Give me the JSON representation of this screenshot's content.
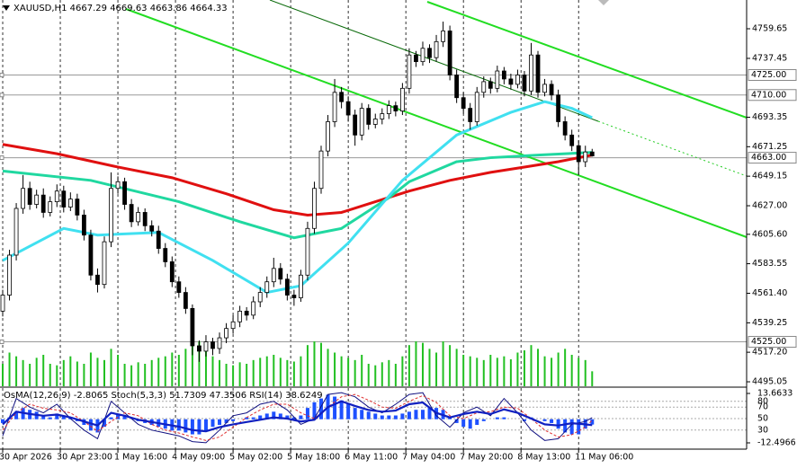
{
  "chart_data": [
    {
      "type": "candlestick",
      "title": "XAUUSD,H1",
      "xlim": [
        -0.4,
        109.8
      ],
      "xticks": [
        {
          "value": 0,
          "label": "30 Apr 2026"
        },
        {
          "value": 8.5,
          "label": "30 Apr 23:00"
        },
        {
          "value": 17,
          "label": "1 May 16:00"
        },
        {
          "value": 25.5,
          "label": "4 May 09:00"
        },
        {
          "value": 34,
          "label": "5 May 02:00"
        },
        {
          "value": 42.5,
          "label": "5 May 18:00"
        },
        {
          "value": 51,
          "label": "6 May 11:00"
        },
        {
          "value": 59.5,
          "label": "7 May 04:00"
        },
        {
          "value": 68,
          "label": "7 May 20:00"
        },
        {
          "value": 76.5,
          "label": "8 May 13:00"
        },
        {
          "value": 85,
          "label": "11 May 06:00"
        }
      ],
      "ylim": [
        4491.7,
        4781.2
      ],
      "yticks": [
        4759.65,
        4737.45,
        4693.35,
        4671.25,
        4649.15,
        {
          "value": 4627,
          "label": "4627.00"
        },
        {
          "value": 4605.6,
          "label": "4605.60"
        },
        4583.55,
        {
          "value": 4561.4,
          "label": "4561.40"
        },
        4539.25,
        {
          "value": 4517.2,
          "label": "4517.20"
        },
        4495.05
      ],
      "levels": [
        {
          "value": 4725,
          "label": "4725.00"
        },
        {
          "value": 4710,
          "label": "4710.00"
        },
        {
          "value": 4663,
          "label": "4663.00"
        },
        {
          "value": 4525,
          "label": "4525.00"
        }
      ],
      "open": [
        4548,
        4560,
        4590,
        4625,
        4640,
        4628,
        4635,
        4622,
        4630,
        4638,
        4626,
        4632,
        4620,
        4605,
        4575,
        4568,
        4600,
        4640,
        4645,
        4628,
        4615,
        4622,
        4612,
        4608,
        4595,
        4585,
        4570,
        4562,
        4550,
        4522,
        4518,
        4525,
        4520,
        4528,
        4535,
        4540,
        4548,
        4545,
        4555,
        4562,
        4570,
        4580,
        4572,
        4560,
        4558,
        4575,
        4610,
        4640,
        4668,
        4690,
        4712,
        4705,
        4695,
        4680,
        4700,
        4688,
        4692,
        4696,
        4702,
        4698,
        4715,
        4740,
        4735,
        4745,
        4738,
        4750,
        4758,
        4725,
        4708,
        4700,
        4690,
        4712,
        4720,
        4715,
        4728,
        4722,
        4718,
        4725,
        4713,
        4740,
        4712,
        4718,
        4710,
        4690,
        4680,
        4672,
        4660,
        4667.29
      ],
      "high": [
        4564,
        4594,
        4629,
        4650,
        4645,
        4639,
        4640,
        4634,
        4643,
        4642,
        4637,
        4636,
        4624,
        4609,
        4580,
        4604,
        4652,
        4649,
        4648,
        4632,
        4626,
        4625,
        4616,
        4612,
        4599,
        4589,
        4574,
        4566,
        4553,
        4526,
        4530,
        4528,
        4532,
        4539,
        4545,
        4552,
        4551,
        4559,
        4566,
        4574,
        4588,
        4584,
        4576,
        4564,
        4579,
        4615,
        4645,
        4672,
        4695,
        4722,
        4716,
        4709,
        4699,
        4704,
        4703,
        4696,
        4700,
        4706,
        4705,
        4719,
        4745,
        4743,
        4750,
        4748,
        4755,
        4765,
        4762,
        4729,
        4712,
        4704,
        4716,
        4724,
        4723,
        4732,
        4731,
        4726,
        4729,
        4728,
        4749,
        4743,
        4722,
        4721,
        4714,
        4694,
        4684,
        4676,
        4672,
        4669.63
      ],
      "low": [
        4544,
        4556,
        4586,
        4621,
        4624,
        4625,
        4618,
        4619,
        4626,
        4622,
        4623,
        4616,
        4601,
        4571,
        4562,
        4565,
        4596,
        4636,
        4624,
        4611,
        4612,
        4608,
        4604,
        4591,
        4581,
        4566,
        4558,
        4546,
        4515,
        4510,
        4514,
        4515,
        4516,
        4524,
        4531,
        4536,
        4541,
        4542,
        4551,
        4558,
        4566,
        4568,
        4556,
        4552,
        4555,
        4571,
        4606,
        4636,
        4664,
        4686,
        4700,
        4690,
        4672,
        4676,
        4684,
        4685,
        4688,
        4692,
        4694,
        4695,
        4711,
        4731,
        4732,
        4734,
        4735,
        4746,
        4721,
        4704,
        4696,
        4684,
        4687,
        4708,
        4711,
        4712,
        4718,
        4714,
        4715,
        4709,
        4710,
        4708,
        4709,
        4706,
        4686,
        4676,
        4668,
        4650,
        4656,
        4663.86
      ],
      "close": [
        4560,
        4590,
        4625,
        4640,
        4628,
        4635,
        4622,
        4630,
        4638,
        4626,
        4632,
        4620,
        4605,
        4575,
        4568,
        4600,
        4640,
        4645,
        4628,
        4615,
        4622,
        4612,
        4608,
        4595,
        4585,
        4570,
        4562,
        4550,
        4522,
        4518,
        4525,
        4520,
        4528,
        4535,
        4540,
        4548,
        4545,
        4555,
        4562,
        4570,
        4580,
        4572,
        4560,
        4558,
        4575,
        4610,
        4640,
        4668,
        4690,
        4712,
        4705,
        4695,
        4680,
        4700,
        4688,
        4692,
        4696,
        4702,
        4698,
        4715,
        4740,
        4735,
        4745,
        4738,
        4750,
        4758,
        4725,
        4708,
        4700,
        4690,
        4712,
        4720,
        4715,
        4728,
        4722,
        4718,
        4725,
        4713,
        4740,
        4712,
        4718,
        4710,
        4690,
        4680,
        4672,
        4660,
        4667.29,
        4664.33
      ],
      "series": [
        {
          "color": "#e01010",
          "x": [
            0,
            8,
            17,
            25,
            33,
            40,
            45,
            50,
            55,
            60,
            66,
            72,
            77,
            82,
            87
          ],
          "values": [
            4673,
            4666,
            4656,
            4648,
            4636,
            4624,
            4620,
            4622,
            4630,
            4638,
            4646,
            4652,
            4656,
            4660,
            4665
          ]
        },
        {
          "color": "#20d8a0",
          "x": [
            0,
            13,
            26,
            35,
            43,
            50,
            57,
            60,
            67,
            72,
            79,
            87
          ],
          "values": [
            4653,
            4646,
            4630,
            4615,
            4603,
            4610,
            4633,
            4645,
            4660,
            4663,
            4665,
            4667
          ]
        },
        {
          "color": "#40e0f0",
          "x": [
            0,
            9,
            14,
            23,
            31,
            39,
            44,
            51,
            59,
            67,
            75,
            80,
            84,
            87
          ],
          "values": [
            4586,
            4610,
            4605,
            4607,
            4586,
            4562,
            4567,
            4599,
            4646,
            4680,
            4697,
            4705,
            4700,
            4693
          ]
        }
      ],
      "volume": {
        "color": "#22c022",
        "values": [
          30,
          45,
          40,
          35,
          30,
          38,
          42,
          30,
          28,
          35,
          40,
          33,
          30,
          45,
          38,
          35,
          50,
          42,
          30,
          28,
          32,
          30,
          35,
          38,
          40,
          45,
          42,
          50,
          55,
          60,
          48,
          40,
          35,
          30,
          28,
          32,
          30,
          35,
          38,
          40,
          42,
          38,
          35,
          33,
          40,
          55,
          60,
          58,
          50,
          45,
          40,
          38,
          35,
          42,
          30,
          28,
          32,
          35,
          30,
          40,
          55,
          60,
          58,
          50,
          45,
          60,
          55,
          50,
          42,
          40,
          38,
          35,
          42,
          38,
          40,
          36,
          45,
          48,
          55,
          50,
          40,
          38,
          45,
          50,
          42,
          38,
          35,
          20
        ]
      }
    },
    {
      "type": "oscillator",
      "indicators": [
        "OsMA(12,26,9)",
        "Stoch(5,3,3)",
        "RSI(14)"
      ],
      "ylim": [
        -15.83,
        16.52
      ],
      "yticks": [
        13.6633,
        -12.4966
      ],
      "y2lim": [
        -3.1,
        103.1
      ],
      "y2ticks": [
        80,
        70,
        50,
        30
      ],
      "osma": {
        "color": "#1e50ff",
        "values": [
          -2,
          1,
          4,
          6,
          5,
          4,
          2,
          1,
          3,
          2,
          1,
          -1,
          -3,
          -6,
          -7,
          -4,
          1,
          3,
          2,
          0,
          -1,
          -2,
          -3,
          -4,
          -5,
          -6,
          -6,
          -7,
          -8,
          -8,
          -6,
          -4,
          -3,
          -2,
          -1,
          0,
          1,
          1,
          2,
          3,
          4,
          3,
          2,
          1,
          2,
          6,
          9,
          11,
          13,
          12,
          10,
          8,
          6,
          5,
          4,
          3,
          2,
          2,
          2,
          3,
          4,
          5,
          5,
          6,
          6,
          5,
          1,
          -2,
          -4,
          -5,
          -3,
          -1,
          0,
          1,
          1,
          0,
          0,
          -1,
          1,
          0,
          -1,
          -2,
          -5,
          -7,
          -8,
          -8,
          -5,
          -2.8065
        ]
      },
      "x": [
        0,
        2,
        4,
        6,
        8,
        10,
        12,
        14,
        16,
        18,
        20,
        22,
        24,
        26,
        28,
        30,
        32,
        34,
        36,
        38,
        40,
        42,
        44,
        46,
        48,
        50,
        52,
        54,
        56,
        58,
        60,
        62,
        64,
        66,
        68,
        70,
        72,
        74,
        76,
        78,
        80,
        82,
        84,
        86,
        87
      ],
      "series": [
        {
          "color": "#101080",
          "axis": "y2",
          "values": [
            20,
            85,
            70,
            60,
            75,
            50,
            30,
            15,
            80,
            60,
            40,
            30,
            25,
            20,
            10,
            8,
            30,
            55,
            60,
            75,
            80,
            65,
            40,
            50,
            92,
            95,
            88,
            70,
            60,
            75,
            92,
            95,
            55,
            35,
            60,
            70,
            55,
            85,
            60,
            30,
            12,
            15,
            40,
            45,
            51.7309
          ]
        },
        {
          "color": "#e03030",
          "axis": "y2",
          "values": [
            30,
            60,
            75,
            68,
            65,
            60,
            45,
            28,
            45,
            60,
            55,
            40,
            30,
            25,
            18,
            12,
            18,
            35,
            52,
            65,
            75,
            75,
            60,
            50,
            70,
            88,
            92,
            82,
            70,
            68,
            80,
            90,
            78,
            55,
            50,
            60,
            62,
            70,
            68,
            50,
            30,
            18,
            22,
            35,
            47.3506
          ]
        },
        {
          "color": "#1020c0",
          "axis": "y2",
          "values": [
            40,
            62,
            58,
            55,
            57,
            52,
            45,
            38,
            60,
            55,
            48,
            44,
            40,
            36,
            30,
            28,
            35,
            40,
            44,
            48,
            52,
            50,
            45,
            48,
            70,
            80,
            72,
            65,
            62,
            64,
            75,
            78,
            60,
            52,
            58,
            62,
            58,
            66,
            60,
            50,
            40,
            38,
            42,
            40,
            38.6249
          ]
        }
      ]
    }
  ]
}
